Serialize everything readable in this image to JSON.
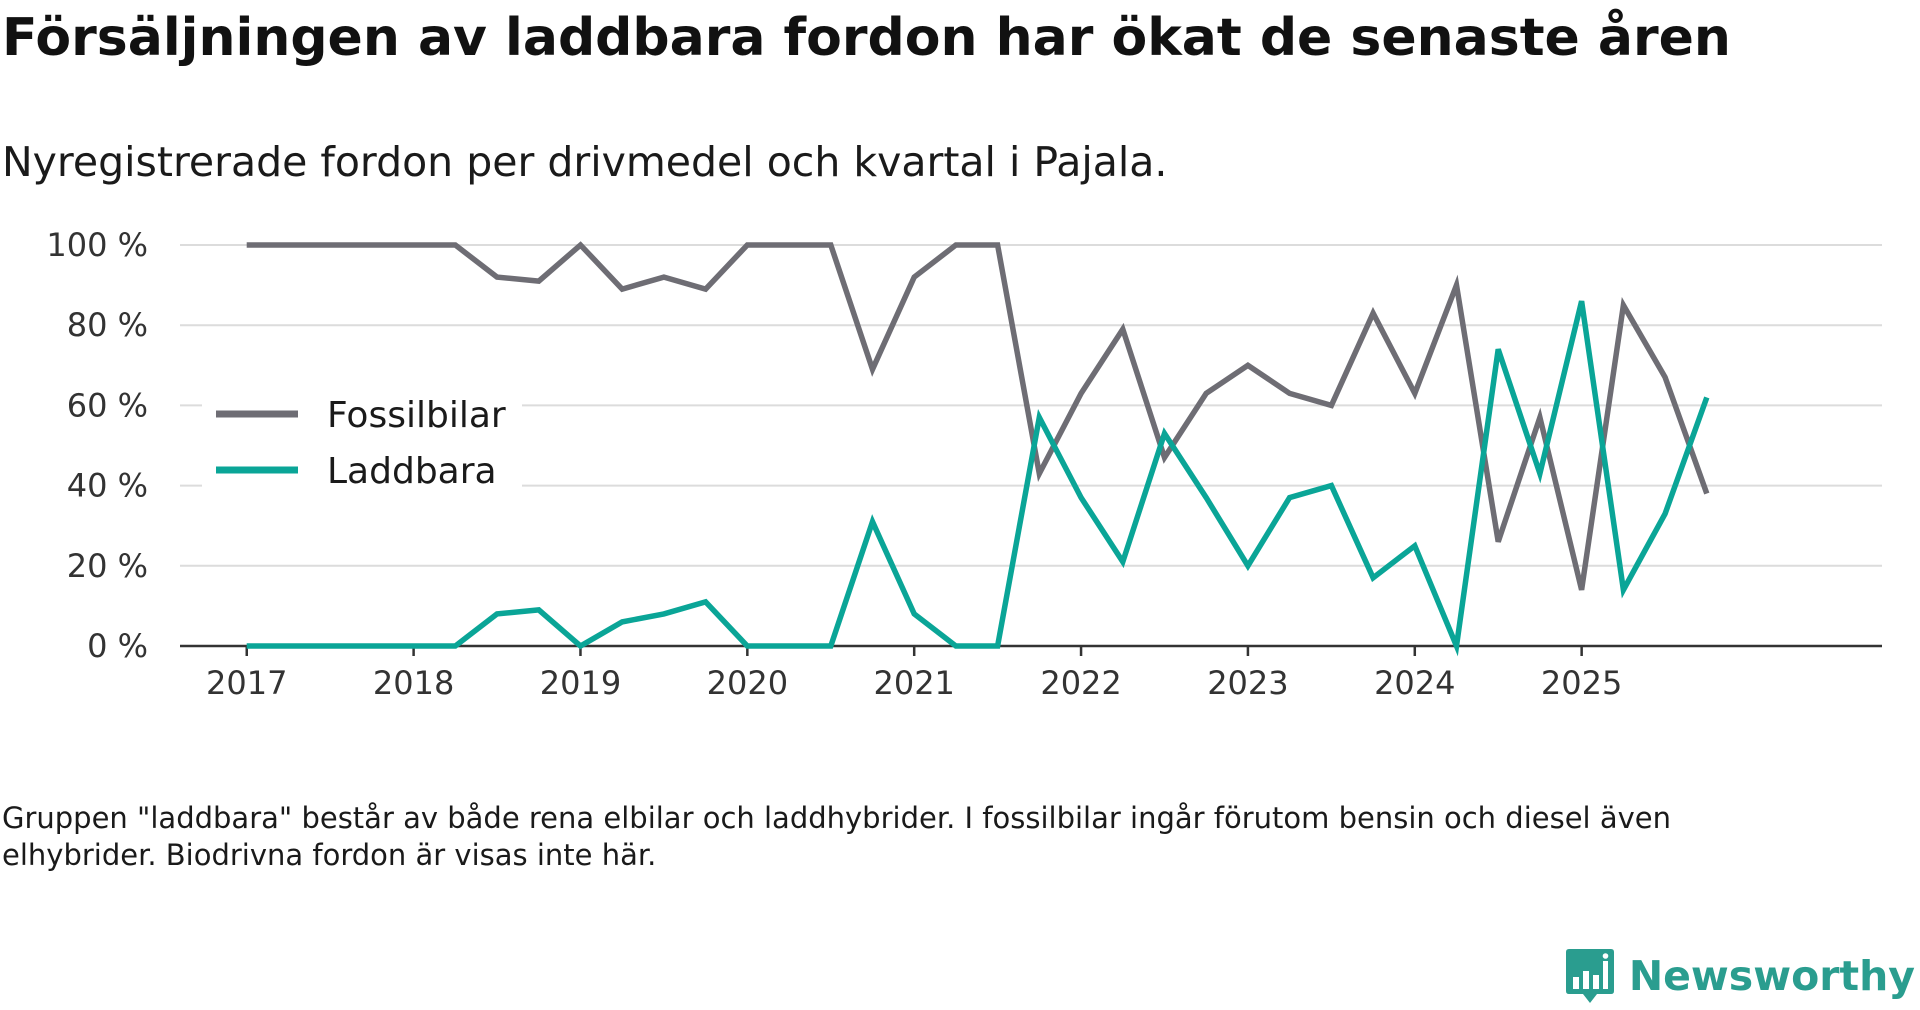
{
  "title": "Försäljningen av laddbara fordon har ökat de senaste åren",
  "subtitle": "Nyregistrerade fordon per drivmedel och kvartal i Pajala.",
  "footnote": "Gruppen \"laddbara\" består av både rena elbilar och laddhybrider. I fossilbilar ingår förutom bensin och diesel även elhybrider. Biodrivna fordon är visas inte här.",
  "brand": {
    "name": "Newsworthy"
  },
  "chart_data": {
    "type": "line",
    "title": "Försäljningen av laddbara fordon har ökat de senaste åren",
    "subtitle": "Nyregistrerade fordon per drivmedel och kvartal i Pajala.",
    "xlabel": "",
    "ylabel": "",
    "x_unit": "kvartal",
    "x_start": 2017.0,
    "x_step": 0.25,
    "xlim": [
      2016.6,
      2026.8
    ],
    "ylim": [
      0,
      100
    ],
    "x_ticks": [
      2017,
      2018,
      2019,
      2020,
      2021,
      2022,
      2023,
      2024,
      2025
    ],
    "x_tick_labels": [
      "2017",
      "2018",
      "2019",
      "2020",
      "2021",
      "2022",
      "2023",
      "2024",
      "2025"
    ],
    "y_ticks": [
      0,
      20,
      40,
      60,
      80,
      100
    ],
    "y_tick_labels": [
      "0 %",
      "20 %",
      "40 %",
      "60 %",
      "80 %",
      "100 %"
    ],
    "grid": true,
    "legend_position": "middle-left",
    "series": [
      {
        "name": "Fossilbilar",
        "color": "#6e6d74",
        "values": [
          100,
          100,
          100,
          100,
          100,
          100,
          92,
          91,
          100,
          89,
          92,
          89,
          100,
          100,
          100,
          69,
          92,
          100,
          100,
          43,
          63,
          79,
          47,
          63,
          70,
          63,
          60,
          83,
          63,
          90,
          26,
          57,
          14,
          85,
          67,
          38
        ]
      },
      {
        "name": "Laddbara",
        "color": "#0aa597",
        "values": [
          0,
          0,
          0,
          0,
          0,
          0,
          8,
          9,
          0,
          6,
          8,
          11,
          0,
          0,
          0,
          31,
          8,
          0,
          0,
          57,
          37,
          21,
          53,
          37,
          20,
          37,
          40,
          17,
          25,
          0,
          74,
          43,
          86,
          14,
          33,
          62
        ]
      }
    ]
  }
}
